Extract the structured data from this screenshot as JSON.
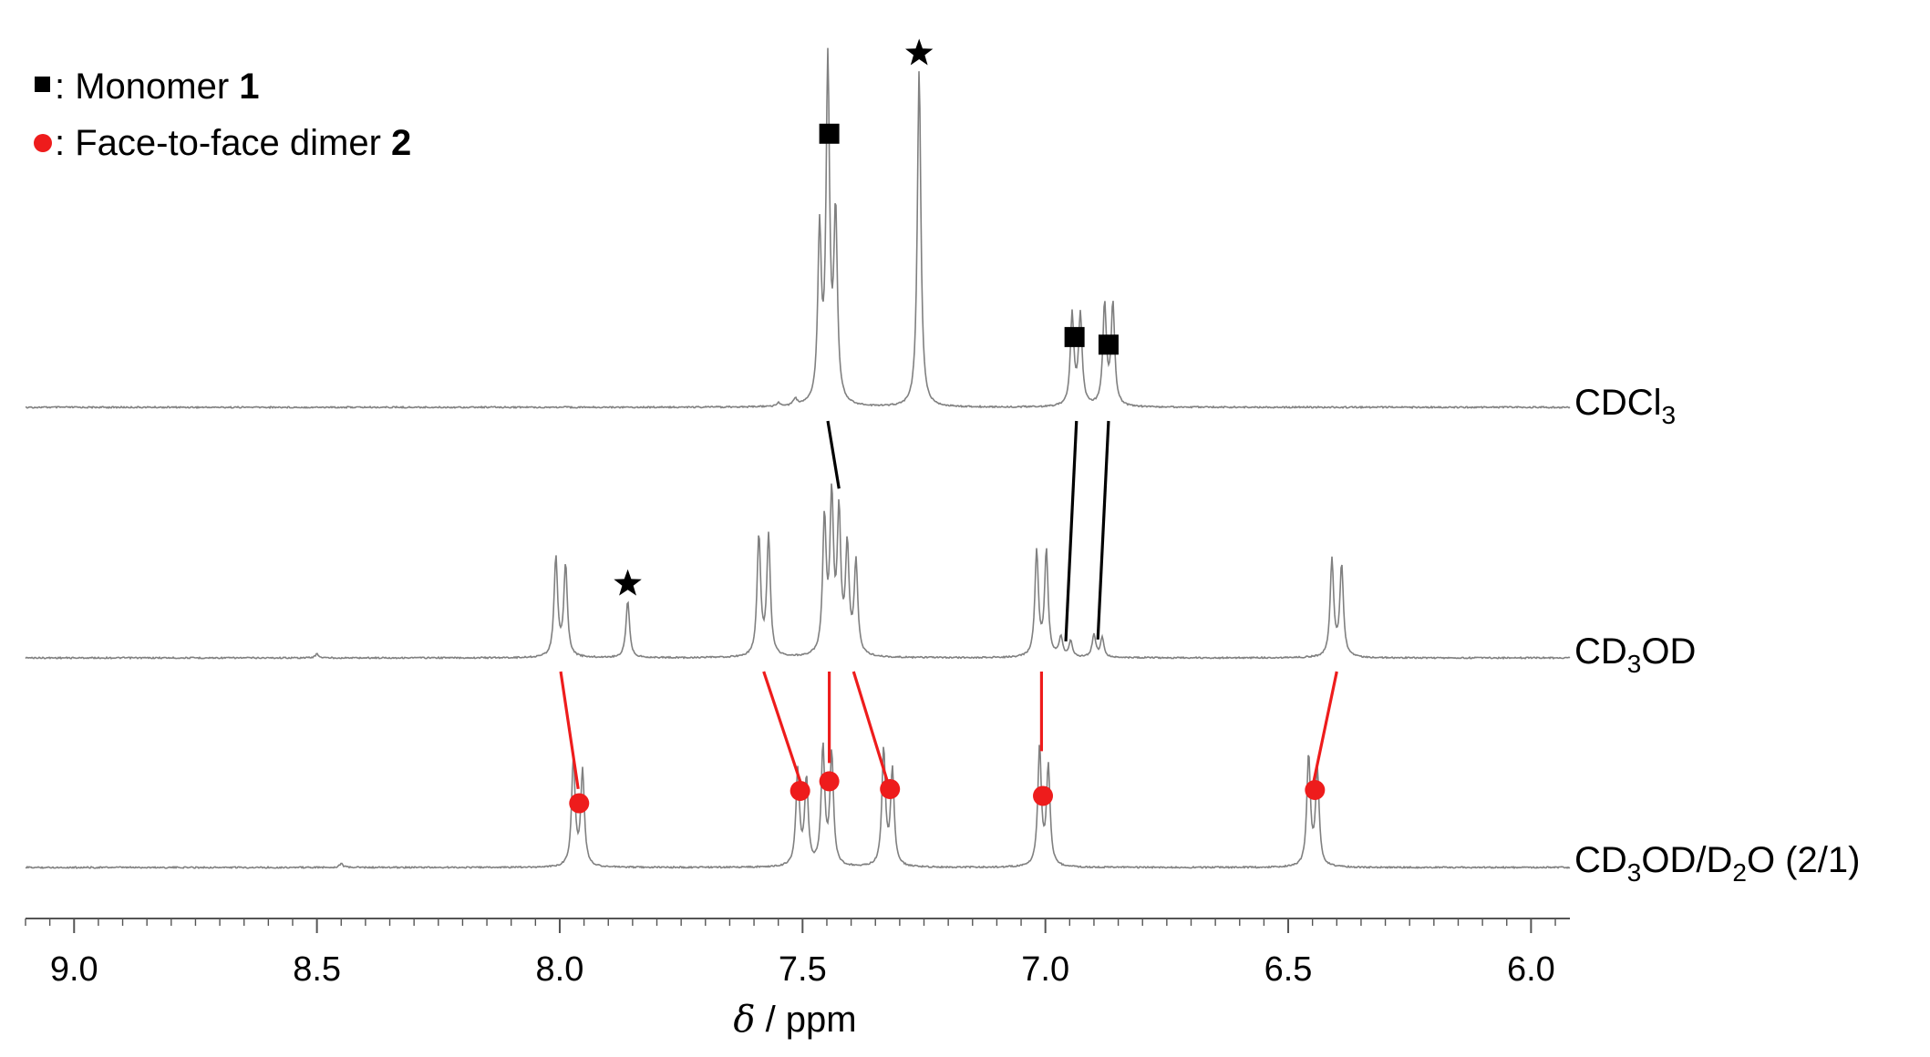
{
  "legend": {
    "monomer": {
      "label": ": Monomer ",
      "number": "1",
      "marker": "square",
      "color": "#000000"
    },
    "dimer": {
      "label": ": Face-to-face dimer ",
      "number": "2",
      "marker": "circle",
      "color": "#ee1c1c"
    }
  },
  "chart_data": {
    "type": "line",
    "xlabel_symbol": "δ",
    "xlabel_unit": " / ppm",
    "xlim": [
      9.1,
      5.92
    ],
    "x_reversed": true,
    "x_ticks": [
      {
        "v": 9.0,
        "label": "9.0"
      },
      {
        "v": 8.5,
        "label": "8.5"
      },
      {
        "v": 8.0,
        "label": "8.0"
      },
      {
        "v": 7.5,
        "label": "7.5"
      },
      {
        "v": 7.0,
        "label": "7.0"
      },
      {
        "v": 6.5,
        "label": "6.5"
      },
      {
        "v": 6.0,
        "label": "6.0"
      }
    ],
    "minor_tick_step": 0.05,
    "line_color": "#808080",
    "series": [
      {
        "name": "CDCl3",
        "label_parts": [
          {
            "t": "CDCl",
            "sub": false
          },
          {
            "t": "3",
            "sub": true
          }
        ],
        "peaks": [
          {
            "x": 7.465,
            "h": 0.5
          },
          {
            "x": 7.448,
            "h": 1.0
          },
          {
            "x": 7.432,
            "h": 0.55
          },
          {
            "x": 7.515,
            "h": 0.02
          },
          {
            "x": 7.55,
            "h": 0.01
          },
          {
            "x": 7.26,
            "h": 1.0
          },
          {
            "x": 6.945,
            "h": 0.27
          },
          {
            "x": 6.928,
            "h": 0.27
          },
          {
            "x": 6.878,
            "h": 0.3
          },
          {
            "x": 6.861,
            "h": 0.3
          }
        ],
        "markers": [
          {
            "x": 7.445,
            "shape": "square"
          },
          {
            "x": 7.26,
            "shape": "star"
          },
          {
            "x": 6.94,
            "shape": "square"
          },
          {
            "x": 6.87,
            "shape": "square"
          }
        ]
      },
      {
        "name": "CD3OD",
        "label_parts": [
          {
            "t": "CD",
            "sub": false
          },
          {
            "t": "3",
            "sub": true
          },
          {
            "t": "OD",
            "sub": false
          }
        ],
        "peaks": [
          {
            "x": 8.008,
            "h": 0.52
          },
          {
            "x": 7.988,
            "h": 0.48
          },
          {
            "x": 7.86,
            "h": 0.3
          },
          {
            "x": 7.59,
            "h": 0.63
          },
          {
            "x": 7.57,
            "h": 0.63
          },
          {
            "x": 7.455,
            "h": 0.7
          },
          {
            "x": 7.44,
            "h": 0.8
          },
          {
            "x": 7.425,
            "h": 0.72
          },
          {
            "x": 7.408,
            "h": 0.55
          },
          {
            "x": 7.39,
            "h": 0.48
          },
          {
            "x": 7.018,
            "h": 0.55
          },
          {
            "x": 6.998,
            "h": 0.55
          },
          {
            "x": 6.968,
            "h": 0.1
          },
          {
            "x": 6.948,
            "h": 0.08
          },
          {
            "x": 6.9,
            "h": 0.12
          },
          {
            "x": 6.883,
            "h": 0.1
          },
          {
            "x": 6.41,
            "h": 0.51
          },
          {
            "x": 6.39,
            "h": 0.48
          },
          {
            "x": 8.5,
            "h": 0.02
          }
        ],
        "markers": [
          {
            "x": 7.86,
            "shape": "star"
          }
        ]
      },
      {
        "name": "CD3OD/D2O (2/1)",
        "label_parts": [
          {
            "t": "CD",
            "sub": false
          },
          {
            "t": "3",
            "sub": true
          },
          {
            "t": "OD/D",
            "sub": false
          },
          {
            "t": "2",
            "sub": true
          },
          {
            "t": "O (2/1)",
            "sub": false
          }
        ],
        "peaks": [
          {
            "x": 7.972,
            "h": 0.56
          },
          {
            "x": 7.953,
            "h": 0.5
          },
          {
            "x": 7.51,
            "h": 0.5
          },
          {
            "x": 7.492,
            "h": 0.45
          },
          {
            "x": 7.458,
            "h": 0.62
          },
          {
            "x": 7.44,
            "h": 0.58
          },
          {
            "x": 7.333,
            "h": 0.61
          },
          {
            "x": 7.315,
            "h": 0.5
          },
          {
            "x": 7.012,
            "h": 0.62
          },
          {
            "x": 6.994,
            "h": 0.52
          },
          {
            "x": 6.458,
            "h": 0.58
          },
          {
            "x": 6.44,
            "h": 0.5
          },
          {
            "x": 8.45,
            "h": 0.02
          }
        ],
        "markers": [
          {
            "x": 7.96,
            "shape": "circle"
          },
          {
            "x": 7.505,
            "shape": "circle"
          },
          {
            "x": 7.445,
            "shape": "circle"
          },
          {
            "x": 7.32,
            "shape": "circle"
          },
          {
            "x": 7.005,
            "shape": "circle"
          },
          {
            "x": 6.445,
            "shape": "circle"
          }
        ]
      }
    ],
    "correlations": [
      {
        "from_series": 0,
        "from_x": 7.448,
        "to_series": 1,
        "to_x": 7.425,
        "color": "#000000"
      },
      {
        "from_series": 0,
        "from_x": 6.936,
        "to_series": 1,
        "to_x": 6.958,
        "color": "#000000"
      },
      {
        "from_series": 0,
        "from_x": 6.87,
        "to_series": 1,
        "to_x": 6.892,
        "color": "#000000"
      },
      {
        "from_series": 1,
        "from_x": 7.998,
        "to_series": 2,
        "to_x": 7.962,
        "color": "#ee1c1c"
      },
      {
        "from_series": 1,
        "from_x": 7.58,
        "to_series": 2,
        "to_x": 7.503,
        "color": "#ee1c1c"
      },
      {
        "from_series": 1,
        "from_x": 7.445,
        "to_series": 2,
        "to_x": 7.445,
        "color": "#ee1c1c"
      },
      {
        "from_series": 1,
        "from_x": 7.395,
        "to_series": 2,
        "to_x": 7.325,
        "color": "#ee1c1c"
      },
      {
        "from_series": 1,
        "from_x": 7.008,
        "to_series": 2,
        "to_x": 7.008,
        "color": "#ee1c1c"
      },
      {
        "from_series": 1,
        "from_x": 6.4,
        "to_series": 2,
        "to_x": 6.449,
        "color": "#ee1c1c"
      }
    ]
  }
}
